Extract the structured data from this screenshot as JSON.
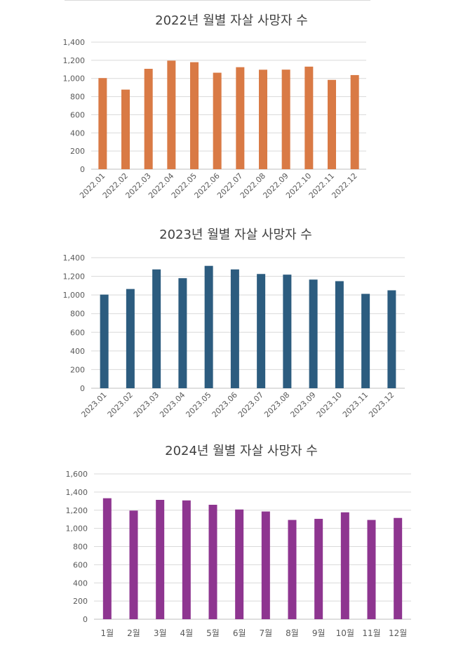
{
  "chart_data": [
    {
      "type": "bar",
      "title": "2022년 월별 자살 사망자 수",
      "categories": [
        "2022.01",
        "2022.02",
        "2022.03",
        "2022.04",
        "2022.05",
        "2022.06",
        "2022.07",
        "2022.08",
        "2022.09",
        "2022.10",
        "2022.11",
        "2022.12"
      ],
      "values": [
        1004,
        877,
        1106,
        1196,
        1179,
        1063,
        1124,
        1096,
        1097,
        1130,
        984,
        1037
      ],
      "ylim": [
        0,
        1400
      ],
      "yticks": [
        "0",
        "200",
        "400",
        "600",
        "800",
        "1,000",
        "1,200",
        "1,400"
      ],
      "xlabel_rotated": true,
      "grid": true,
      "color": "#d97a45"
    },
    {
      "type": "bar",
      "title": "2023년 월별 자살 사망자 수",
      "categories": [
        "2023.01",
        "2023.02",
        "2023.03",
        "2023.04",
        "2023.05",
        "2023.06",
        "2023.07",
        "2023.08",
        "2023.09",
        "2023.10",
        "2023.11",
        "2023.12"
      ],
      "values": [
        1004,
        1064,
        1274,
        1180,
        1312,
        1274,
        1225,
        1218,
        1165,
        1148,
        1012,
        1050
      ],
      "ylim": [
        0,
        1400
      ],
      "yticks": [
        "0",
        "200",
        "400",
        "600",
        "800",
        "1,000",
        "1,200",
        "1,400"
      ],
      "xlabel_rotated": true,
      "grid": true,
      "color": "#2c5c7f"
    },
    {
      "type": "bar",
      "title": "2024년 월별 자살 사망자 수",
      "categories": [
        "1월",
        "2월",
        "3월",
        "4월",
        "5월",
        "6월",
        "7월",
        "8월",
        "9월",
        "10월",
        "11월",
        "12월"
      ],
      "values": [
        1332,
        1196,
        1314,
        1308,
        1260,
        1208,
        1186,
        1093,
        1105,
        1177,
        1093,
        1115
      ],
      "ylim": [
        0,
        1600
      ],
      "yticks": [
        "0",
        "200",
        "400",
        "600",
        "800",
        "1,000",
        "1,200",
        "1,400",
        "1,600"
      ],
      "xlabel_rotated": false,
      "grid": true,
      "color": "#8e3590"
    }
  ]
}
